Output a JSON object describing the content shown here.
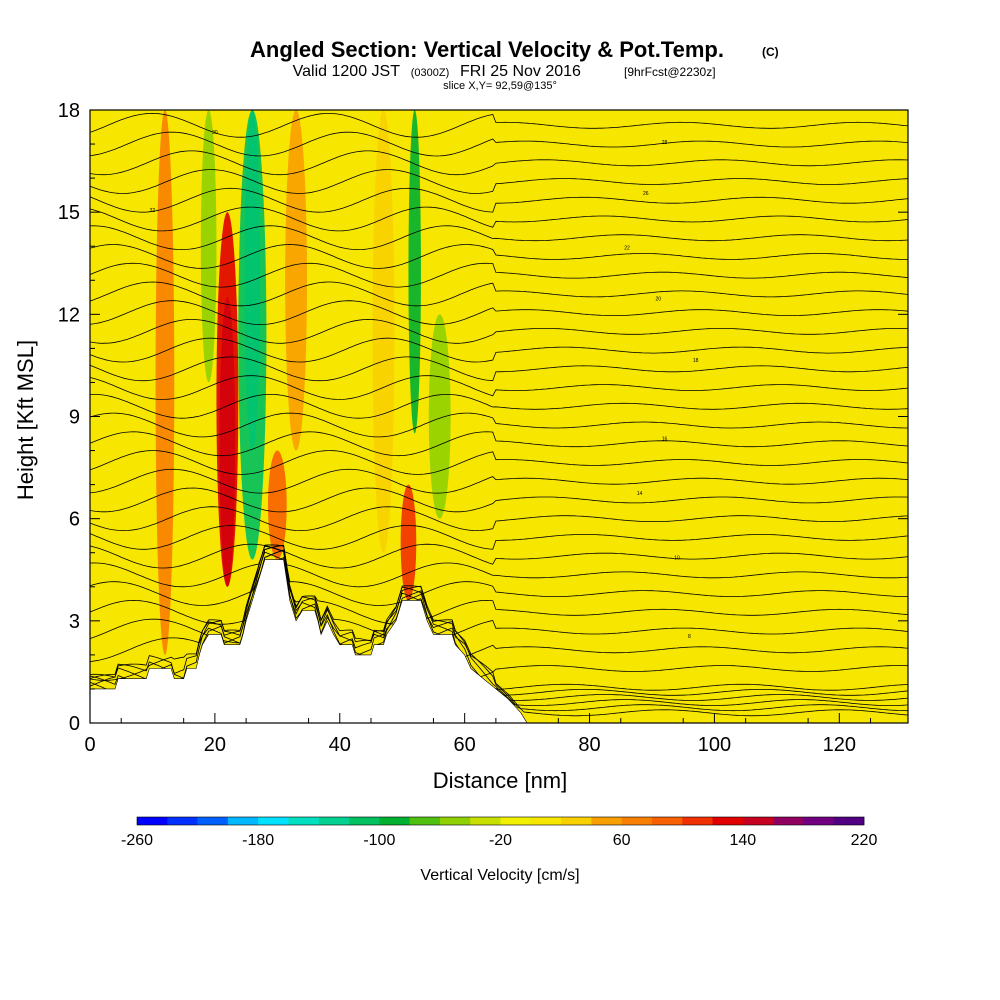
{
  "header": {
    "title_main": "Angled Section: Vertical Velocity & Pot.Temp.",
    "title_units": "(C)",
    "valid_prefix": "Valid 1200 JST",
    "valid_utc": "(0300Z)",
    "valid_date": "FRI 25 Nov 2016",
    "valid_fcst": "[9hrFcst@2230z]",
    "slice": "slice X,Y= 92,59@135°"
  },
  "chart_data": {
    "type": "heatmap",
    "xlabel": "Distance [nm]",
    "ylabel": "Height [Kft MSL]",
    "xlim": [
      0,
      131
    ],
    "ylim": [
      0,
      18
    ],
    "x_ticks": [
      "0",
      "20",
      "40",
      "60",
      "80",
      "100",
      "120"
    ],
    "y_ticks": [
      "0",
      "3",
      "6",
      "9",
      "12",
      "15",
      "18"
    ],
    "colorbar": {
      "label": "Vertical Velocity [cm/s]",
      "tick_labels": [
        "-260",
        "-180",
        "-100",
        "-20",
        "60",
        "140",
        "220"
      ],
      "min": -260,
      "max": 220,
      "step": 20
    },
    "terrain_top_kft": [
      [
        0,
        1.0
      ],
      [
        4,
        1.0
      ],
      [
        4.5,
        1.3
      ],
      [
        9,
        1.3
      ],
      [
        9.5,
        1.6
      ],
      [
        13,
        1.6
      ],
      [
        13.5,
        1.3
      ],
      [
        15,
        1.3
      ],
      [
        15.5,
        1.6
      ],
      [
        17,
        1.6
      ],
      [
        17.5,
        2.0
      ],
      [
        18,
        2.3
      ],
      [
        19,
        2.6
      ],
      [
        21,
        2.6
      ],
      [
        21.5,
        2.3
      ],
      [
        24,
        2.3
      ],
      [
        24.5,
        2.6
      ],
      [
        25,
        3.0
      ],
      [
        26,
        3.6
      ],
      [
        28,
        4.8
      ],
      [
        31,
        4.8
      ],
      [
        31.5,
        4.2
      ],
      [
        32,
        3.6
      ],
      [
        33,
        3.0
      ],
      [
        34,
        3.3
      ],
      [
        36,
        3.3
      ],
      [
        36.5,
        3.0
      ],
      [
        37,
        2.6
      ],
      [
        38,
        3.0
      ],
      [
        39,
        2.6
      ],
      [
        40,
        2.3
      ],
      [
        42,
        2.3
      ],
      [
        42.5,
        2.0
      ],
      [
        45,
        2.0
      ],
      [
        45.5,
        2.3
      ],
      [
        47,
        2.3
      ],
      [
        47.5,
        2.6
      ],
      [
        49,
        3.0
      ],
      [
        50,
        3.6
      ],
      [
        53,
        3.6
      ],
      [
        53.5,
        3.3
      ],
      [
        54,
        3.0
      ],
      [
        55,
        2.6
      ],
      [
        58,
        2.6
      ],
      [
        58.5,
        2.3
      ],
      [
        60,
        2.0
      ],
      [
        61,
        1.6
      ],
      [
        63,
        1.3
      ],
      [
        65,
        1.0
      ],
      [
        67,
        0.7
      ],
      [
        68,
        0.5
      ],
      [
        69,
        0.3
      ],
      [
        70,
        0.0
      ]
    ],
    "vertical_velocity_features": [
      {
        "x": 22,
        "width": 2.5,
        "bottom": 4,
        "top": 12.5,
        "value": 200
      },
      {
        "x": 22,
        "width": 3.5,
        "bottom": 4,
        "top": 15,
        "value": 120
      },
      {
        "x": 26,
        "width": 2.5,
        "bottom": 8,
        "top": 18,
        "value": -180
      },
      {
        "x": 26,
        "width": 4.5,
        "bottom": 4.8,
        "top": 18,
        "value": -120
      },
      {
        "x": 52,
        "width": 2.0,
        "bottom": 8.5,
        "top": 18,
        "value": -100
      },
      {
        "x": 51,
        "width": 2.5,
        "bottom": 3.6,
        "top": 7,
        "value": 100
      },
      {
        "x": 30,
        "width": 3.0,
        "bottom": 4.8,
        "top": 8,
        "value": 80
      },
      {
        "x": 19,
        "width": 2.5,
        "bottom": 10,
        "top": 18,
        "value": -60
      },
      {
        "x": 12,
        "width": 3.0,
        "bottom": 2,
        "top": 18,
        "value": 60
      },
      {
        "x": 33,
        "width": 3.5,
        "bottom": 8,
        "top": 18,
        "value": 40
      },
      {
        "x": 47,
        "width": 3.5,
        "bottom": 5,
        "top": 18,
        "value": 30
      },
      {
        "x": 56,
        "width": 3.5,
        "bottom": 6,
        "top": 12,
        "value": -50
      }
    ],
    "potential_temperature_labels": [
      "8",
      "10",
      "14",
      "16",
      "18",
      "20",
      "22",
      "26",
      "28",
      "30",
      "32"
    ]
  }
}
